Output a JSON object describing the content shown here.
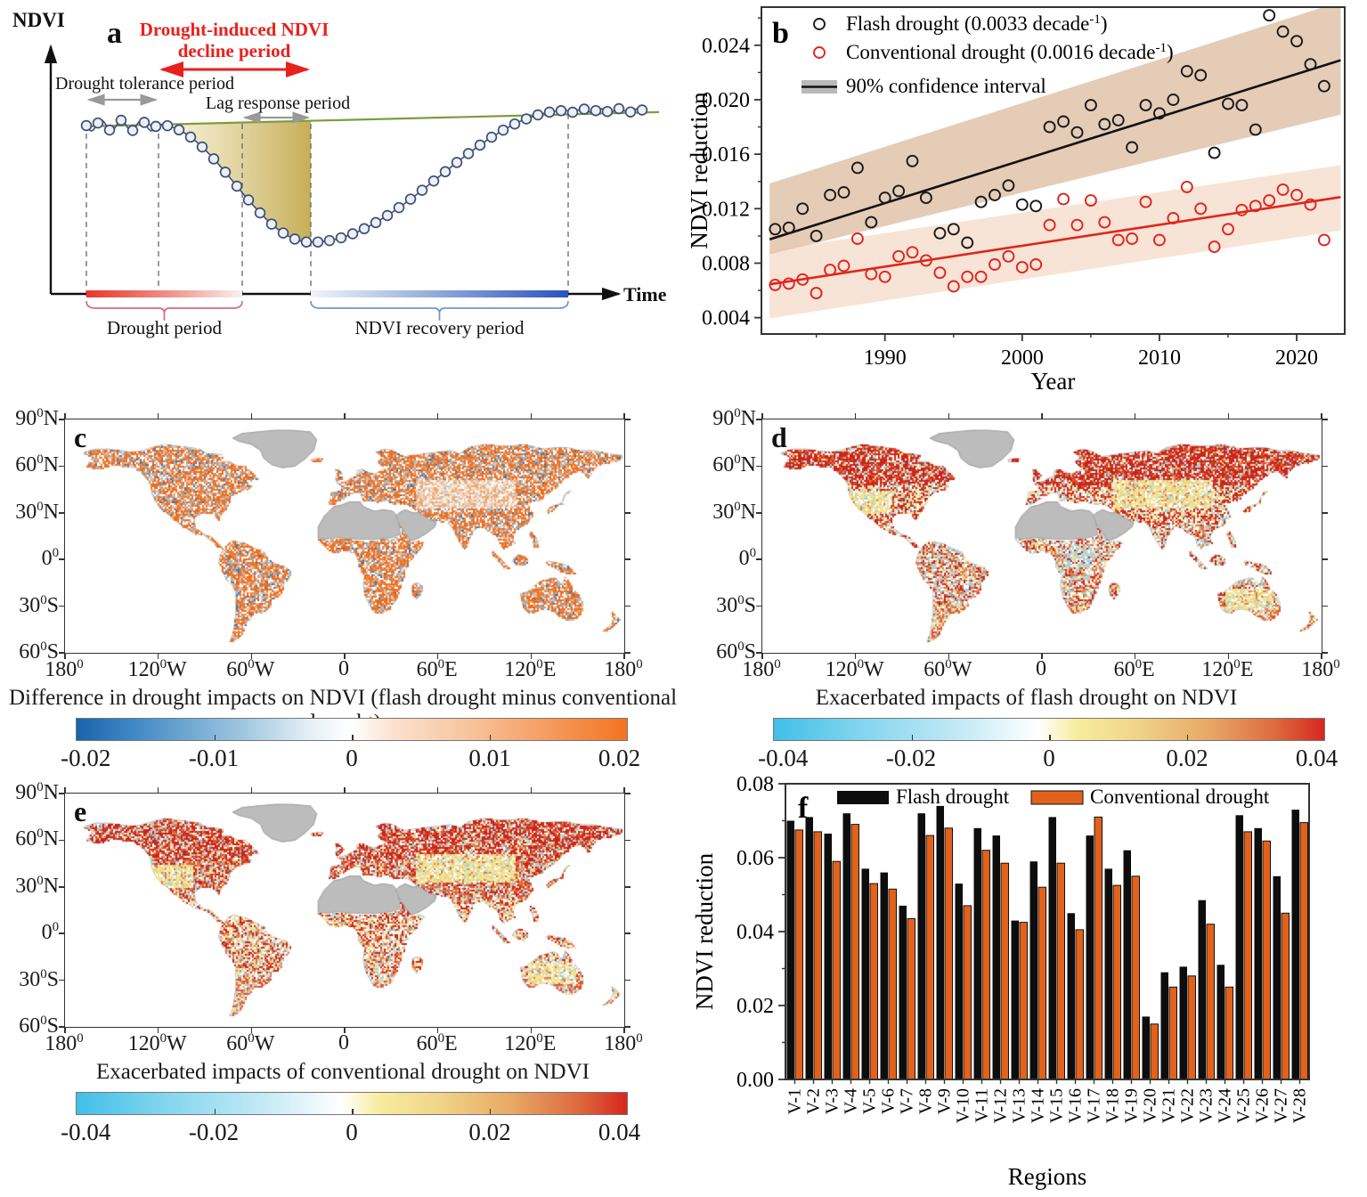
{
  "chart_data": [
    {
      "id": "a",
      "type": "diagram",
      "letter": "a",
      "ylabel": "NDVI",
      "xlabel": "Time",
      "labels": {
        "decline_line1": "Drought-induced NDVI",
        "decline_line2": "decline period",
        "tolerance": "Drought tolerance period",
        "lag": "Lag response period",
        "drought_period": "Drought period",
        "recovery_period": "NDVI recovery period"
      },
      "colors": {
        "decline_text": "#e8211d",
        "baseline_green": "#7d9c3e",
        "marker_stroke": "#3d4f76",
        "drought_bar_red": "#e8372c",
        "recovery_bar_blue": "#2b52be",
        "shade_from": "#f8f3d6",
        "shade_to": "#c3aa4f",
        "drought_brace": "#cf6f78",
        "recovery_brace": "#7396cc"
      }
    },
    {
      "id": "b",
      "type": "scatter",
      "letter": "b",
      "xlabel": "Year",
      "ylabel": "NDVI reduction",
      "xlim": [
        1981,
        2023.5
      ],
      "ylim": [
        0.0028,
        0.0268
      ],
      "xticks": [
        1990,
        2000,
        2010,
        2020
      ],
      "yticks": [
        0.004,
        0.008,
        0.012,
        0.016,
        0.02,
        0.024
      ],
      "legend_ci": "90% confidence interval",
      "x": [
        1982,
        1983,
        1984,
        1985,
        1986,
        1987,
        1988,
        1989,
        1990,
        1991,
        1992,
        1993,
        1994,
        1995,
        1996,
        1997,
        1998,
        1999,
        2000,
        2001,
        2002,
        2003,
        2004,
        2005,
        2006,
        2007,
        2008,
        2009,
        2010,
        2011,
        2012,
        2013,
        2014,
        2015,
        2016,
        2017,
        2018,
        2019,
        2020,
        2021,
        2022
      ],
      "series": [
        {
          "name": "Flash drought",
          "rate": "0.0033",
          "rate_unit": "decade",
          "rate_sup": "-1",
          "color": "#1a1a1a",
          "y": [
            0.0105,
            0.0106,
            0.012,
            0.01,
            0.013,
            0.0132,
            0.015,
            0.011,
            0.0128,
            0.0133,
            0.0155,
            0.0128,
            0.0102,
            0.0105,
            0.0095,
            0.0125,
            0.013,
            0.0137,
            0.0123,
            0.0122,
            0.018,
            0.0184,
            0.0176,
            0.0196,
            0.0182,
            0.0185,
            0.0165,
            0.0196,
            0.019,
            0.02,
            0.0221,
            0.0218,
            0.0161,
            0.0197,
            0.0196,
            0.0178,
            0.0262,
            0.025,
            0.0243,
            0.0226,
            0.021
          ]
        },
        {
          "name": "Conventional drought",
          "rate": "0.0016",
          "rate_unit": "decade",
          "rate_sup": "-1",
          "color": "#e0251f",
          "y": [
            0.0064,
            0.0065,
            0.0068,
            0.0058,
            0.0075,
            0.0078,
            0.0098,
            0.0072,
            0.007,
            0.0085,
            0.0088,
            0.0082,
            0.0073,
            0.0063,
            0.007,
            0.007,
            0.0079,
            0.0085,
            0.0077,
            0.0079,
            0.0108,
            0.0127,
            0.0108,
            0.0126,
            0.011,
            0.0097,
            0.0098,
            0.0125,
            0.0097,
            0.0113,
            0.0136,
            0.012,
            0.0092,
            0.0105,
            0.0119,
            0.0122,
            0.0126,
            0.0134,
            0.013,
            0.0123,
            0.0097
          ]
        }
      ],
      "trend": {
        "flash": {
          "x0": 1981.6,
          "y0": 0.00975,
          "x1": 2023.2,
          "y1": 0.0229
        },
        "conv": {
          "x0": 1981.6,
          "y0": 0.00645,
          "x1": 2023.2,
          "y1": 0.01285
        }
      },
      "ci": {
        "flash": {
          "left": [
            0.00865,
            0.01385
          ],
          "right": [
            0.0189,
            0.0272
          ],
          "fill": "#c08552",
          "opacity": 0.42
        },
        "conv": {
          "left": [
            0.00395,
            0.00895
          ],
          "right": [
            0.0104,
            0.0152
          ],
          "fill": "#eec3a4",
          "opacity": 0.45
        }
      }
    },
    {
      "id": "c",
      "type": "map",
      "letter": "c",
      "caption": "Difference in drought impacts on NDVI (flash drought minus conventional drought)",
      "lat_ticks": [
        "90°N",
        "60°N",
        "30°N",
        "0°",
        "30°S",
        "60°S"
      ],
      "lon_ticks": [
        "180°",
        "120°W",
        "60°W",
        "0",
        "60°E",
        "120°E",
        "180°"
      ],
      "colorbar": {
        "min": -0.02,
        "max": 0.02,
        "ticks": [
          "-0.02",
          "-0.01",
          "0",
          "0.01",
          "0.02"
        ],
        "left_color": "#1b63ab",
        "right_color": "#f4731f"
      }
    },
    {
      "id": "d",
      "type": "map",
      "letter": "d",
      "caption": "Exacerbated impacts of flash drought on NDVI",
      "lat_ticks": [
        "90°N",
        "60°N",
        "30°N",
        "0°",
        "30°S",
        "60°S"
      ],
      "lon_ticks": [
        "180°",
        "120°W",
        "60°W",
        "0",
        "60°E",
        "120°E",
        "180°"
      ],
      "colorbar": {
        "min": -0.04,
        "max": 0.04,
        "ticks": [
          "-0.04",
          "-0.02",
          "0",
          "0.02",
          "0.04"
        ],
        "left_color": "#41bfe8",
        "right_color": "#d6271f"
      }
    },
    {
      "id": "e",
      "type": "map",
      "letter": "e",
      "caption": "Exacerbated impacts of conventional drought on NDVI",
      "lat_ticks": [
        "90°N",
        "60°N",
        "30°N",
        "0°",
        "30°S",
        "60°S"
      ],
      "lon_ticks": [
        "180°",
        "120°W",
        "60°W",
        "0",
        "60°E",
        "120°E",
        "180°"
      ],
      "colorbar": {
        "min": -0.04,
        "max": 0.04,
        "ticks": [
          "-0.04",
          "-0.02",
          "0",
          "0.02",
          "0.04"
        ],
        "left_color": "#41bfe8",
        "right_color": "#d6271f"
      }
    },
    {
      "id": "f",
      "type": "bar",
      "letter": "f",
      "xlabel": "Regions",
      "ylabel": "NDVI reduction",
      "ylim": [
        0,
        0.08
      ],
      "yticks": [
        0.0,
        0.02,
        0.04,
        0.06,
        0.08
      ],
      "categories": [
        "V-1",
        "V-2",
        "V-3",
        "V-4",
        "V-5",
        "V-6",
        "V-7",
        "V-8",
        "V-9",
        "V-10",
        "V-11",
        "V-12",
        "V-13",
        "V-14",
        "V-15",
        "V-16",
        "V-17",
        "V-18",
        "V-19",
        "V-20",
        "V-21",
        "V-22",
        "V-23",
        "V-24",
        "V-25",
        "V-26",
        "V-27",
        "V-28"
      ],
      "series": [
        {
          "name": "Flash drought",
          "color": "#0d0d0d",
          "values": [
            0.07,
            0.071,
            0.0665,
            0.072,
            0.057,
            0.056,
            0.047,
            0.072,
            0.074,
            0.053,
            0.068,
            0.066,
            0.043,
            0.059,
            0.071,
            0.045,
            0.066,
            0.057,
            0.062,
            0.017,
            0.029,
            0.0305,
            0.0485,
            0.031,
            0.0715,
            0.068,
            0.055,
            0.073
          ]
        },
        {
          "name": "Conventional drought",
          "color": "#e2621b",
          "values": [
            0.0675,
            0.067,
            0.059,
            0.069,
            0.053,
            0.0515,
            0.0435,
            0.066,
            0.068,
            0.047,
            0.062,
            0.0585,
            0.0425,
            0.052,
            0.0585,
            0.0405,
            0.071,
            0.0525,
            0.055,
            0.015,
            0.025,
            0.028,
            0.042,
            0.025,
            0.067,
            0.0645,
            0.045,
            0.0695
          ]
        }
      ]
    }
  ]
}
